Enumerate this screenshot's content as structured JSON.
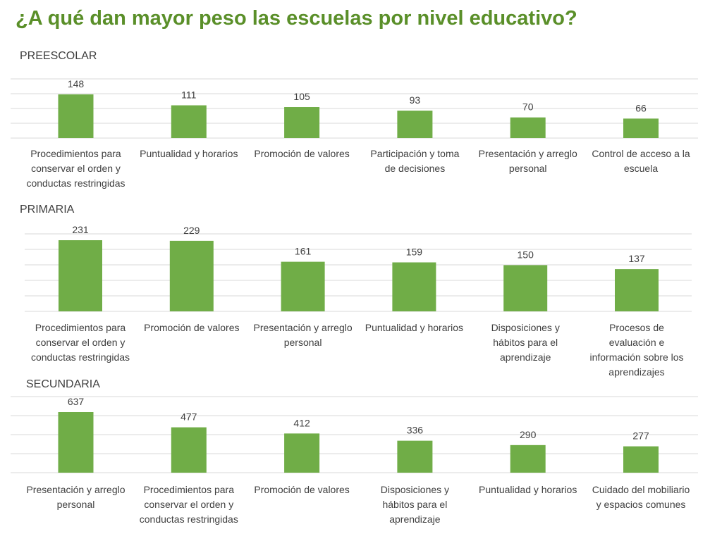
{
  "page": {
    "title": "¿A qué dan mayor peso las escuelas por nivel educativo?"
  },
  "colors": {
    "title": "#5a8f29",
    "bar": "#70ad47",
    "grid": "#d9d9d9",
    "text": "#404040"
  },
  "chart_data": [
    {
      "type": "bar",
      "title": "PREESCOLAR",
      "categories": [
        [
          "Procedimientos para",
          "conservar el orden y",
          "conductas restringidas"
        ],
        [
          "Puntualidad y horarios"
        ],
        [
          "Promoción de valores"
        ],
        [
          "Participación y toma",
          "de decisiones"
        ],
        [
          "Presentación y arreglo",
          "personal"
        ],
        [
          "Control de acceso a la",
          "escuela"
        ]
      ],
      "values": [
        148,
        111,
        105,
        93,
        70,
        66
      ],
      "grid": true
    },
    {
      "type": "bar",
      "title": "PRIMARIA",
      "categories": [
        [
          "Procedimientos para",
          "conservar el orden y",
          "conductas restringidas"
        ],
        [
          "Promoción de valores"
        ],
        [
          "Presentación y arreglo",
          "personal"
        ],
        [
          "Puntualidad y horarios"
        ],
        [
          "Disposiciones y",
          "hábitos para el",
          "aprendizaje"
        ],
        [
          "Procesos de",
          "evaluación e",
          "información sobre los",
          "aprendizajes"
        ]
      ],
      "values": [
        231,
        229,
        161,
        159,
        150,
        137
      ],
      "grid": true
    },
    {
      "type": "bar",
      "title": "SECUNDARIA",
      "categories": [
        [
          "Presentación y arreglo",
          "personal"
        ],
        [
          "Procedimientos para",
          "conservar el orden y",
          "conductas restringidas"
        ],
        [
          "Promoción de valores"
        ],
        [
          "Disposiciones y",
          "hábitos para el",
          "aprendizaje"
        ],
        [
          "Puntualidad y horarios"
        ],
        [
          "Cuidado del mobiliario",
          "y espacios comunes"
        ]
      ],
      "values": [
        637,
        477,
        412,
        336,
        290,
        277
      ],
      "grid": true
    }
  ]
}
